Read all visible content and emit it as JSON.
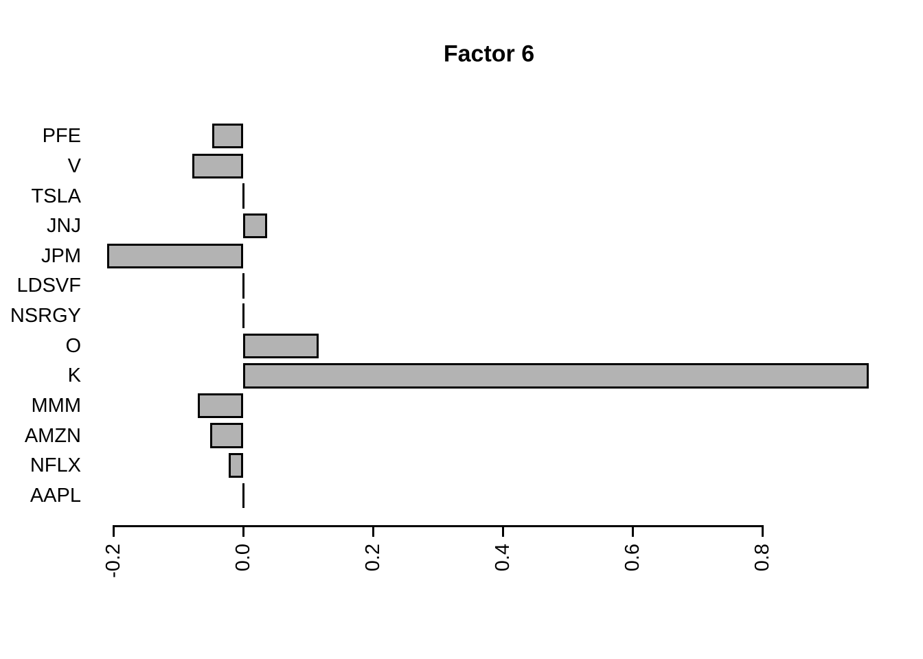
{
  "title": "Factor 6",
  "chart_data": {
    "type": "bar",
    "orientation": "horizontal",
    "title": "Factor 6",
    "categories": [
      "PFE",
      "V",
      "TSLA",
      "JNJ",
      "JPM",
      "LDSVF",
      "NSRGY",
      "O",
      "K",
      "MMM",
      "AMZN",
      "NFLX",
      "AAPL"
    ],
    "values": [
      -0.048,
      -0.078,
      0,
      0.037,
      -0.209,
      0,
      0,
      0.116,
      0.964,
      -0.07,
      -0.051,
      -0.022,
      0
    ],
    "x_ticks": [
      {
        "label": "-0.2",
        "value": -0.2
      },
      {
        "label": "0.0",
        "value": 0.0
      },
      {
        "label": "0.2",
        "value": 0.2
      },
      {
        "label": "0.4",
        "value": 0.4
      },
      {
        "label": "0.6",
        "value": 0.6
      },
      {
        "label": "0.8",
        "value": 0.8
      }
    ],
    "xlim": [
      -0.2,
      0.8
    ],
    "xlabel": "",
    "ylabel": "",
    "grid": false,
    "legend": false,
    "bar_color": "#b3b3b3",
    "bar_border_color": "#000000",
    "text_color": "#000000",
    "background_color": "#ffffff"
  }
}
